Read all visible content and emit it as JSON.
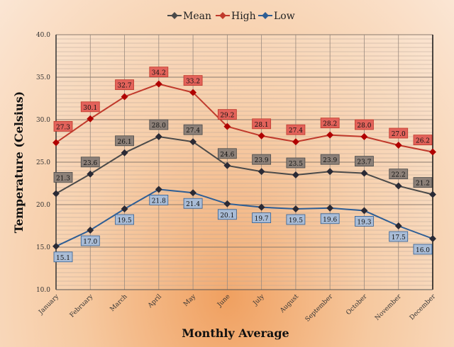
{
  "chart_data": {
    "type": "line",
    "title": "",
    "xlabel": "Monthly Average",
    "ylabel": "Temperature (Celsius)",
    "ylim": [
      10,
      40
    ],
    "yticks": [
      "10.0",
      "15.0",
      "20.0",
      "25.0",
      "30.0",
      "35.0",
      "40.0"
    ],
    "grid": true,
    "legend_position": "top",
    "categories": [
      "January",
      "February",
      "March",
      "April",
      "May",
      "June",
      "July",
      "August",
      "September",
      "October",
      "November",
      "December"
    ],
    "series": [
      {
        "name": "Mean",
        "color": "#4a4a4a",
        "label_bg": "#8c8078",
        "values": [
          21.3,
          23.6,
          26.1,
          28.0,
          27.4,
          24.6,
          23.9,
          23.5,
          23.9,
          23.7,
          22.2,
          21.2
        ]
      },
      {
        "name": "High",
        "color": "#c0392b",
        "label_bg": "#e2625a",
        "values": [
          27.3,
          30.1,
          32.7,
          34.2,
          33.2,
          29.2,
          28.1,
          27.4,
          28.2,
          28.0,
          27.0,
          26.2
        ]
      },
      {
        "name": "Low",
        "color": "#2e5e95",
        "label_bg": "#a9bcd6",
        "values": [
          15.1,
          17.0,
          19.5,
          21.8,
          21.4,
          20.1,
          19.7,
          19.5,
          19.6,
          19.3,
          17.5,
          16.0
        ]
      }
    ]
  }
}
